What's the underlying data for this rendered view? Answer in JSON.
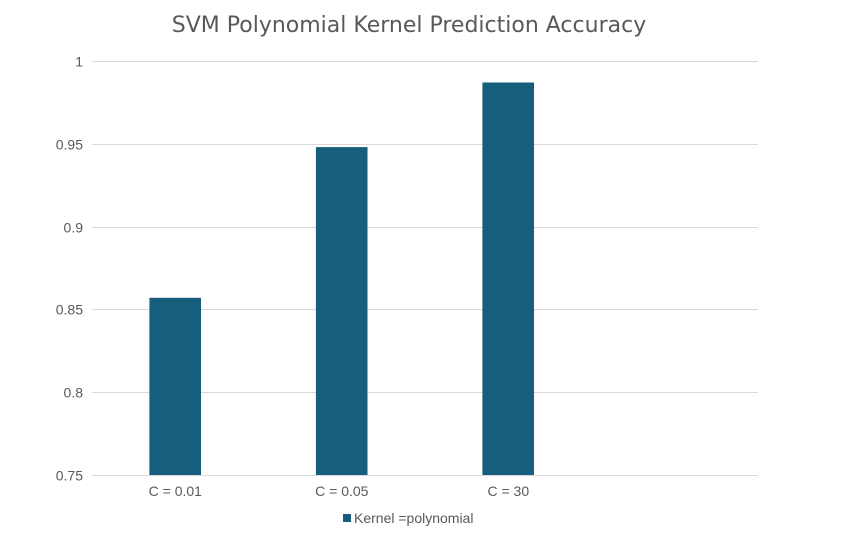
{
  "chart_data": {
    "type": "bar",
    "title": "SVM Polynomial Kernel Prediction Accuracy",
    "xlabel": "",
    "ylabel": "",
    "categories": [
      "C = 0.01",
      "C = 0.05",
      "C = 30",
      ""
    ],
    "series": [
      {
        "name": "Kernel =polynomial",
        "values": [
          0.857,
          0.948,
          0.987,
          null
        ],
        "color": "#175e7d"
      }
    ],
    "ylim": [
      0.75,
      1
    ],
    "yticks": [
      0.75,
      0.8,
      0.85,
      0.9,
      0.95,
      1
    ],
    "ytick_labels": [
      "0.75",
      "0.8",
      "0.85",
      "0.9",
      "0.95",
      "1"
    ],
    "grid": true,
    "legend_position": "bottom"
  }
}
